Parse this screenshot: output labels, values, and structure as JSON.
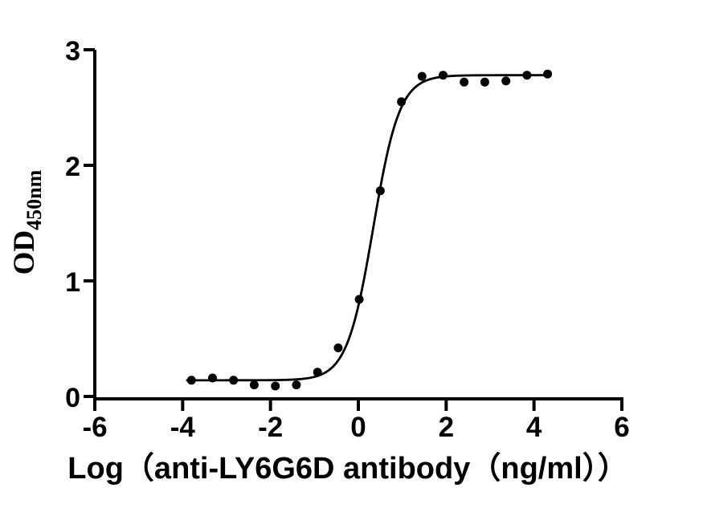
{
  "figure": {
    "background": "#ffffff",
    "ink_color": "#000000"
  },
  "chart_data": {
    "type": "scatter",
    "subtype": "sigmoidal-dose-response-fit",
    "title": "",
    "xlabel": "Log（anti-LY6G6D antibody（ng/ml））",
    "ylabel": "OD",
    "ylabel_subscript": "450nm",
    "xlim": [
      -6,
      6
    ],
    "ylim": [
      0,
      3
    ],
    "x_ticks": [
      -6,
      -4,
      -2,
      0,
      2,
      4,
      6
    ],
    "y_ticks": [
      0,
      1,
      2,
      3
    ],
    "grid": false,
    "legend": null,
    "marker": {
      "shape": "circle",
      "color": "#000000",
      "radius_px": 5.5
    },
    "points": {
      "x": [
        -3.8,
        -3.32,
        -2.84,
        -2.37,
        -1.89,
        -1.41,
        -0.93,
        -0.46,
        0.02,
        0.5,
        0.98,
        1.45,
        1.93,
        2.41,
        2.88,
        3.36,
        3.84,
        4.31
      ],
      "y": [
        0.14,
        0.16,
        0.14,
        0.1,
        0.09,
        0.1,
        0.21,
        0.42,
        0.84,
        1.78,
        2.55,
        2.77,
        2.78,
        2.72,
        2.72,
        2.73,
        2.78,
        2.79
      ]
    },
    "fit_curve": {
      "model": "4PL",
      "bottom": 0.14,
      "top": 2.78,
      "log_ec50": 0.34,
      "hill_slope": 1.45,
      "x_range": [
        -3.92,
        4.37
      ],
      "color": "#000000"
    }
  }
}
